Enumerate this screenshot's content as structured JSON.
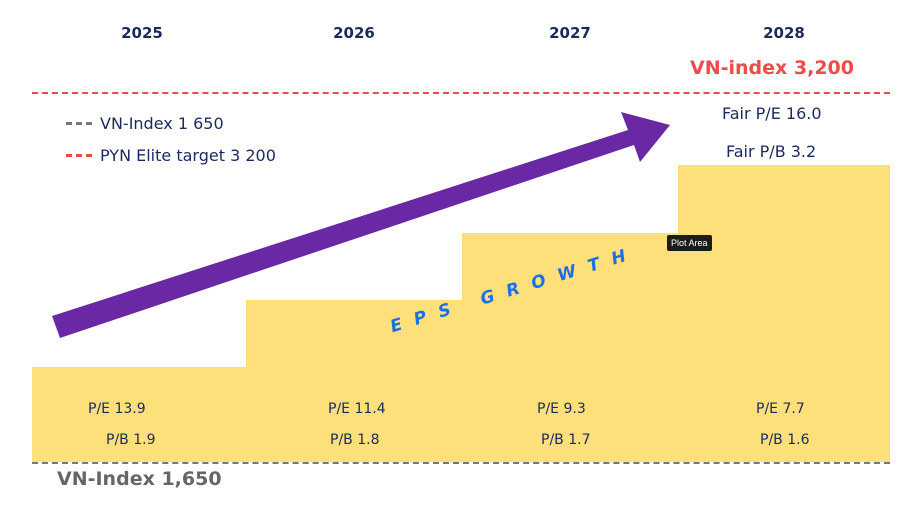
{
  "years": [
    "2025",
    "2026",
    "2027",
    "2028"
  ],
  "target_label": "VN-index 3,200",
  "base_label": "VN-Index 1,650",
  "legend": [
    {
      "label": "VN-Index 1 650",
      "color": "#777777"
    },
    {
      "label": "PYN Elite target 3 200",
      "color": "#ee4b4b"
    }
  ],
  "fair": {
    "pe": "Fair P/E 16.0",
    "pb": "Fair P/B 3.2"
  },
  "steps": [
    {
      "pe": "P/E 13.9",
      "pb": "P/B 1.9"
    },
    {
      "pe": "P/E 11.4",
      "pb": "P/B 1.8"
    },
    {
      "pe": "P/E 9.3",
      "pb": "P/B 1.7"
    },
    {
      "pe": "P/E 7.7",
      "pb": "P/B 1.6"
    }
  ],
  "arrow_label": "EPS GROWTH",
  "tooltip": "Plot Area",
  "colors": {
    "step": "#fde07a",
    "arrow": "#6a28a4",
    "target": "#ee4b4b",
    "text": "#1b2a5c",
    "eps": "#1e6ee8"
  }
}
